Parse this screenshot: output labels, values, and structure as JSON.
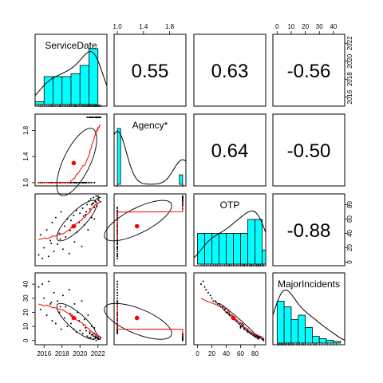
{
  "chart_data": {
    "type": "scatter",
    "title": "",
    "layout": "pairs-panel matrix (scatterplot matrix with histograms on the diagonal and correlations in the upper triangle)",
    "variables": [
      {
        "name": "ServiceDate",
        "range": [
          2015,
          2023
        ],
        "ticks": [
          2016,
          2018,
          2020,
          2022
        ]
      },
      {
        "name": "Agency*",
        "range": [
          0.95,
          2.05
        ],
        "ticks": [
          1.0,
          1.4,
          1.8
        ]
      },
      {
        "name": "OTP",
        "range": [
          -5,
          95
        ],
        "ticks": [
          0,
          20,
          40,
          60,
          80
        ]
      },
      {
        "name": "MajorIncidents",
        "range": [
          -3,
          48
        ],
        "ticks": [
          0,
          10,
          20,
          30,
          40
        ]
      }
    ],
    "correlations": [
      {
        "row": "ServiceDate",
        "col": "Agency*",
        "value": "0.55"
      },
      {
        "row": "ServiceDate",
        "col": "OTP",
        "value": "0.63"
      },
      {
        "row": "ServiceDate",
        "col": "MajorIncidents",
        "value": "-0.56"
      },
      {
        "row": "Agency*",
        "col": "OTP",
        "value": "0.64"
      },
      {
        "row": "Agency*",
        "col": "MajorIncidents",
        "value": "-0.50"
      },
      {
        "row": "OTP",
        "col": "MajorIncidents",
        "value": "-0.88"
      }
    ],
    "histograms": {
      "ServiceDate": {
        "breaks": [
          2015,
          2016,
          2017,
          2018,
          2019,
          2020,
          2021,
          2022
        ],
        "density": [
          0.05,
          0.5,
          0.5,
          0.5,
          0.55,
          0.7,
          1.0
        ]
      },
      "Agency*": {
        "breaks": [
          1.0,
          1.05,
          1.9,
          1.95,
          2.0
        ],
        "density": [
          1.0,
          0,
          0,
          0.17
        ]
      },
      "OTP": {
        "breaks": [
          0,
          10,
          20,
          30,
          40,
          50,
          60,
          70,
          80,
          90,
          95
        ],
        "density": [
          0.55,
          0.55,
          0.55,
          0.55,
          0.55,
          0.55,
          0.55,
          0.8,
          0.8,
          0.25
        ]
      },
      "MajorIncidents": {
        "breaks": [
          0,
          5,
          10,
          15,
          20,
          25,
          30,
          35,
          40,
          45
        ],
        "density": [
          0.75,
          0.65,
          0.42,
          0.5,
          0.28,
          0.12,
          0.08,
          0.05,
          0.03
        ]
      }
    },
    "points": {
      "ServiceDate": [
        2015.4,
        2015.6,
        2015.8,
        2016.0,
        2016.3,
        2016.5,
        2016.7,
        2016.9,
        2017.1,
        2017.3,
        2017.5,
        2017.7,
        2017.9,
        2018.1,
        2018.3,
        2018.4,
        2018.6,
        2018.8,
        2019.0,
        2019.1,
        2019.3,
        2019.4,
        2019.6,
        2019.7,
        2019.9,
        2020.0,
        2020.2,
        2020.3,
        2020.5,
        2020.6,
        2020.8,
        2020.9,
        2021.0,
        2021.1,
        2021.2,
        2021.3,
        2021.4,
        2021.5,
        2021.6,
        2021.7,
        2021.8,
        2021.9,
        2022.0,
        2022.1,
        2022.2,
        2022.3,
        2021.6,
        2021.1,
        2020.4,
        2019.5,
        2018.9,
        2017.8,
        2016.8,
        2021.9,
        2022.0,
        2021.3,
        2020.7,
        2021.7,
        2022.1,
        2021.5
      ],
      "Agency*": [
        1,
        1,
        1,
        1,
        1,
        1,
        1,
        1,
        1,
        1,
        1,
        1,
        1,
        1,
        1,
        1,
        1,
        1,
        1,
        1,
        1,
        1,
        1,
        1,
        1,
        1,
        1,
        1,
        1,
        1,
        2,
        1,
        2,
        1,
        2,
        1,
        2,
        2,
        1,
        2,
        2,
        2,
        2,
        2,
        2,
        2,
        1,
        2,
        1,
        1,
        1,
        1,
        1,
        2,
        2,
        2,
        1,
        2,
        2,
        2
      ],
      "OTP": [
        10,
        38,
        5,
        20,
        45,
        8,
        30,
        55,
        15,
        62,
        25,
        40,
        70,
        18,
        50,
        35,
        60,
        12,
        58,
        48,
        65,
        28,
        72,
        42,
        55,
        68,
        22,
        75,
        52,
        66,
        80,
        45,
        85,
        70,
        88,
        62,
        82,
        90,
        76,
        84,
        92,
        78,
        88,
        86,
        90,
        84,
        60,
        74,
        64,
        50,
        44,
        32,
        26,
        88,
        92,
        80,
        70,
        86,
        90,
        82
      ],
      "MajorIncidents": [
        38,
        22,
        40,
        30,
        18,
        42,
        26,
        14,
        34,
        12,
        28,
        20,
        8,
        32,
        16,
        24,
        10,
        36,
        12,
        18,
        8,
        26,
        6,
        20,
        14,
        7,
        28,
        5,
        15,
        9,
        3,
        18,
        2,
        6,
        2,
        10,
        4,
        1,
        5,
        3,
        0,
        4,
        2,
        3,
        1,
        2,
        9,
        5,
        11,
        16,
        19,
        24,
        27,
        2,
        1,
        4,
        7,
        2,
        1,
        3
      ]
    },
    "means": {
      "ServiceDate": 2019.3,
      "Agency*": 1.3,
      "OTP": 50,
      "MajorIncidents": 16
    },
    "colors": {
      "histogram_fill": "#00ffff",
      "lowess": "#ff0000",
      "mean_point": "#ff0000",
      "points": "#000000",
      "ellipse": "#000000"
    },
    "grid": false
  }
}
